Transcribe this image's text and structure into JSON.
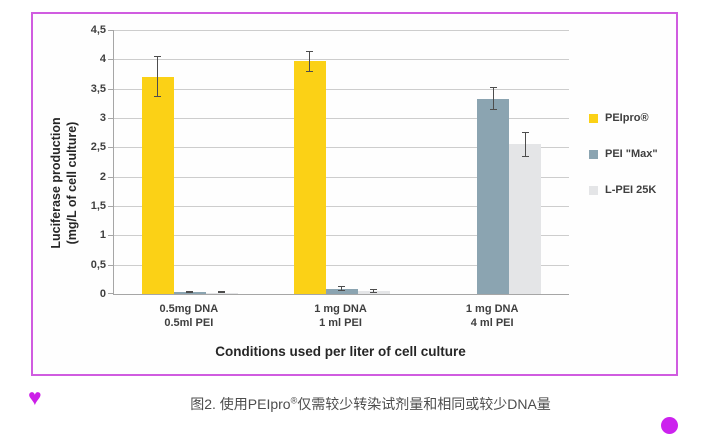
{
  "colors": {
    "frame_border": "#D05CE0",
    "heart": "#CC1FE8",
    "dot": "#CC22EE",
    "peipro_yellow": "#FBD116",
    "pei_max_bluegray": "#8BA4B1",
    "lpei_lightgray": "#E4E5E7"
  },
  "decorations": {
    "heart_glyph": "♥"
  },
  "figure": {
    "caption": {
      "prefix": "图2. 使用PEIpro",
      "registered": "®",
      "suffix": "仅需较少转染试剂量和相同或较少DNA量"
    }
  },
  "chart_data": {
    "type": "bar",
    "title": "",
    "xlabel": "Conditions used per liter of cell culture",
    "ylabel_line1": "Luciferase production",
    "ylabel_line2": "(mg/L of cell culture)",
    "ylim": [
      0,
      4.5
    ],
    "ytick_step": 0.5,
    "ytick_labels": [
      "0",
      "0,5",
      "1",
      "1,5",
      "2",
      "2,5",
      "3",
      "3,5",
      "4",
      "4,5"
    ],
    "grid": true,
    "legend_position": "right",
    "categories": [
      [
        "0.5mg DNA",
        "0.5ml PEI"
      ],
      [
        "1 mg DNA",
        "1 ml PEI"
      ],
      [
        "1 mg DNA",
        "4 ml PEI"
      ]
    ],
    "series": [
      {
        "name": "PEIpro®",
        "color": "#FBD116",
        "values": [
          3.7,
          3.97,
          null
        ],
        "errors": [
          0.35,
          0.18,
          null
        ]
      },
      {
        "name": "PEI \"Max\"",
        "color": "#8BA4B1",
        "values": [
          0.03,
          0.09,
          3.33
        ],
        "errors": [
          0.02,
          0.04,
          0.2
        ]
      },
      {
        "name": "L-PEI 25K",
        "color": "#E4E5E7",
        "values": [
          0.02,
          0.05,
          2.55
        ],
        "errors": [
          0.01,
          0.04,
          0.22
        ]
      }
    ]
  }
}
